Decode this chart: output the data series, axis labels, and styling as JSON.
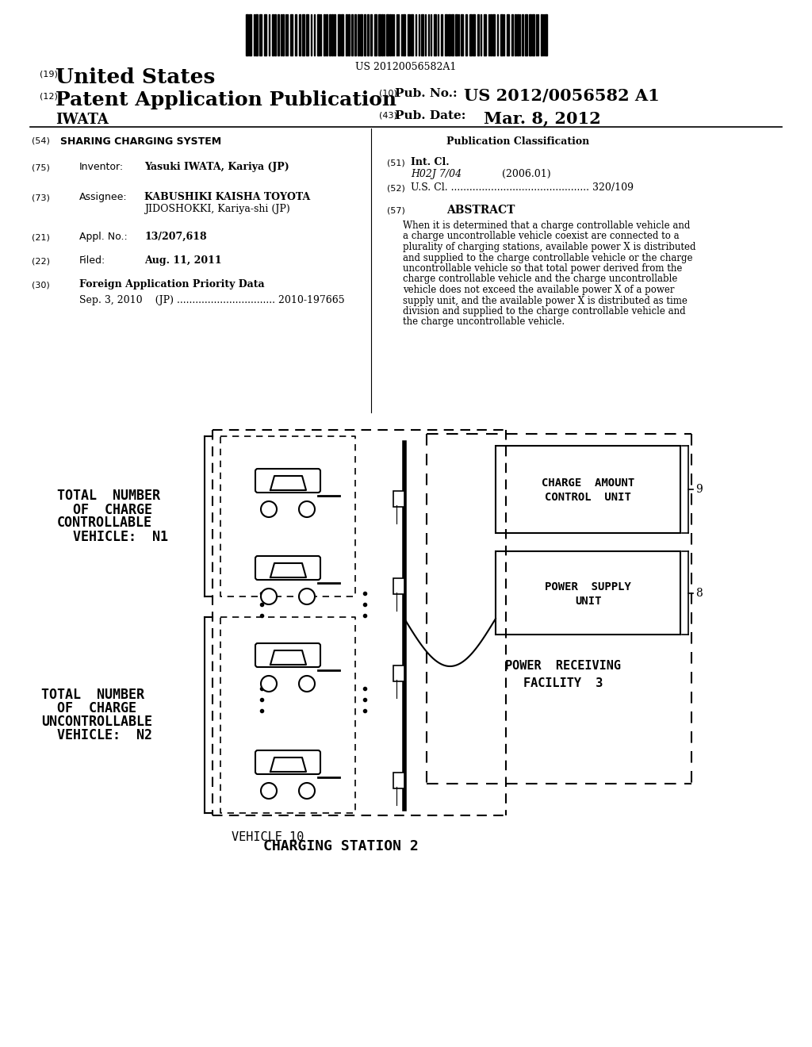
{
  "bg_color": "#ffffff",
  "barcode_text": "US 20120056582A1",
  "header": {
    "label19": "(19)",
    "united_states": "United States",
    "label12": "(12)",
    "patent_app": "Patent Application Publication",
    "inventor_name": "IWATA",
    "label10": "(10)",
    "pub_no_label": "Pub. No.:",
    "pub_no": "US 2012/0056582 A1",
    "label43": "(43)",
    "pub_date_label": "Pub. Date:",
    "pub_date": "Mar. 8, 2012"
  },
  "left_col": {
    "label54": "(54)",
    "title": "SHARING CHARGING SYSTEM",
    "label75": "(75)",
    "inventor_label": "Inventor:",
    "inventor": "Yasuki IWATA, Kariya (JP)",
    "label73": "(73)",
    "assignee_label": "Assignee:",
    "assignee_line1": "KABUSHIKI KAISHA TOYOTA",
    "assignee_line2": "JIDOSHOKKI, Kariya-shi (JP)",
    "label21": "(21)",
    "appl_label": "Appl. No.:",
    "appl_no": "13/207,618",
    "label22": "(22)",
    "filed_label": "Filed:",
    "filed": "Aug. 11, 2011",
    "label30": "(30)",
    "foreign_label": "Foreign Application Priority Data",
    "foreign_data": "Sep. 3, 2010    (JP) ................................ 2010-197665"
  },
  "right_col": {
    "pub_class_label": "Publication Classification",
    "label51": "(51)",
    "intcl_label": "Int. Cl.",
    "intcl": "H02J 7/04",
    "intcl_year": "(2006.01)",
    "label52": "(52)",
    "uscl_label": "U.S. Cl. ............................................. 320/109",
    "label57": "(57)",
    "abstract_label": "ABSTRACT",
    "abstract_lines": [
      "When it is determined that a charge controllable vehicle and",
      "a charge uncontrollable vehicle coexist are connected to a",
      "plurality of charging stations, available power X is distributed",
      "and supplied to the charge controllable vehicle or the charge",
      "uncontrollable vehicle so that total power derived from the",
      "charge controllable vehicle and the charge uncontrollable",
      "vehicle does not exceed the available power X of a power",
      "supply unit, and the available power X is distributed as time",
      "division and supplied to the charge controllable vehicle and",
      "the charge uncontrollable vehicle."
    ]
  },
  "diagram": {
    "total_number_n1_lines": [
      "TOTAL  NUMBER",
      "  OF  CHARGE",
      "CONTROLLABLE",
      "  VEHICLE:  N1"
    ],
    "total_number_n2_lines": [
      "TOTAL  NUMBER",
      "  OF  CHARGE",
      "UNCONTROLLABLE",
      "  VEHICLE:  N2"
    ],
    "vehicle_label": "VEHICLE 10",
    "charging_station_label": "CHARGING STATION 2",
    "charge_amount_line1": "CHARGE  AMOUNT",
    "charge_amount_line2": "CONTROL  UNIT",
    "power_supply_line1": "POWER  SUPPLY",
    "power_supply_line2": "UNIT",
    "power_receiving_line1": "POWER  RECEIVING",
    "power_receiving_line2": "FACILITY  3",
    "label9": "9",
    "label8": "8"
  }
}
